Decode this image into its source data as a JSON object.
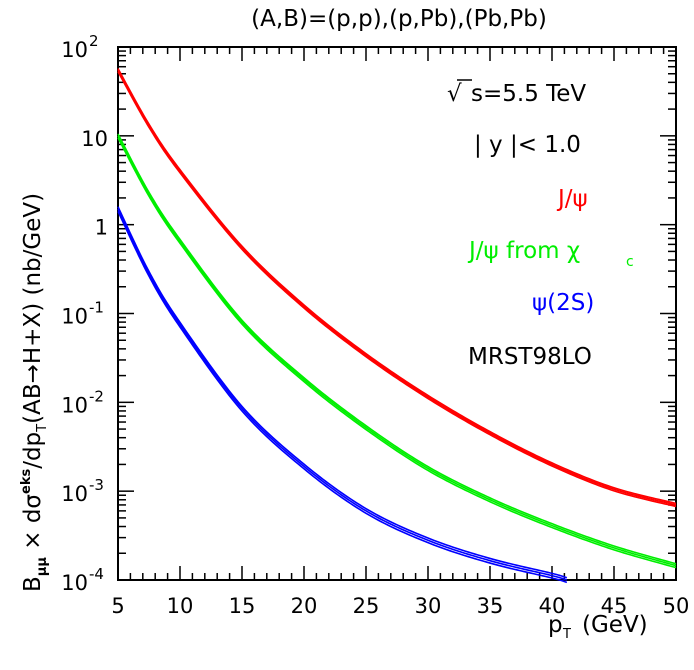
{
  "chart_data": {
    "type": "line",
    "title": "(A,B)=(p,p),(p,Pb),(Pb,Pb)",
    "xlabel": "p",
    "xlabel_sub": "T",
    "xlabel_unit": "(GeV)",
    "ylabel": {
      "b": "B",
      "b_sub": "μμ",
      "times": " × dσ",
      "sup": "eks",
      "slash": "/dp",
      "t_sub": "T",
      "rest": "(AB→H+X) (nb/GeV)"
    },
    "xlim": [
      5,
      50
    ],
    "ylim": [
      0.0001,
      100
    ],
    "yscale": "log",
    "x_ticks": [
      "5",
      "10",
      "15",
      "20",
      "25",
      "30",
      "35",
      "40",
      "45",
      "50"
    ],
    "y_ticks": [
      {
        "base": "10",
        "exp": "-4",
        "v": 0.0001
      },
      {
        "base": "10",
        "exp": "-3",
        "v": 0.001
      },
      {
        "base": "10",
        "exp": "-2",
        "v": 0.01
      },
      {
        "base": "10",
        "exp": "-1",
        "v": 0.1
      },
      {
        "base": "1",
        "exp": "",
        "v": 1
      },
      {
        "base": "10",
        "exp": "",
        "v": 10
      },
      {
        "base": "10",
        "exp": "2",
        "v": 100
      }
    ],
    "annotations": {
      "energy_sqrt": "√",
      "energy": "s=5.5 TeV",
      "rapidity": "| y |< 1.0",
      "pdf": "MRST98LO"
    },
    "series": [
      {
        "name": "J/ψ",
        "color": "#ff0000",
        "x": [
          5,
          7.5,
          10,
          15,
          20,
          25,
          30,
          35,
          40,
          45,
          50
        ],
        "y": [
          55,
          13,
          4.0,
          0.55,
          0.12,
          0.034,
          0.0115,
          0.0045,
          0.002,
          0.00105,
          0.0007
        ],
        "band": [
          0.96,
          1.04
        ]
      },
      {
        "name": "J/ψ from χc",
        "label_main": "J/ψ from χ",
        "label_sub": "c",
        "color": "#00ee00",
        "x": [
          5,
          7.5,
          10,
          15,
          20,
          25,
          30,
          35,
          40,
          45,
          50
        ],
        "y": [
          10,
          2.2,
          0.65,
          0.08,
          0.018,
          0.0052,
          0.0018,
          0.0008,
          0.00041,
          0.00023,
          0.000145
        ],
        "band": [
          0.95,
          1.05
        ]
      },
      {
        "name": "ψ(2S)",
        "color": "#0000ff",
        "x": [
          5,
          7.5,
          10,
          15,
          20,
          25,
          30,
          35,
          40,
          41.2
        ],
        "y": [
          1.5,
          0.28,
          0.075,
          0.0085,
          0.0019,
          0.0006,
          0.00028,
          0.000165,
          0.000112,
          0.0001
        ],
        "band": [
          0.94,
          1.06
        ]
      }
    ]
  }
}
